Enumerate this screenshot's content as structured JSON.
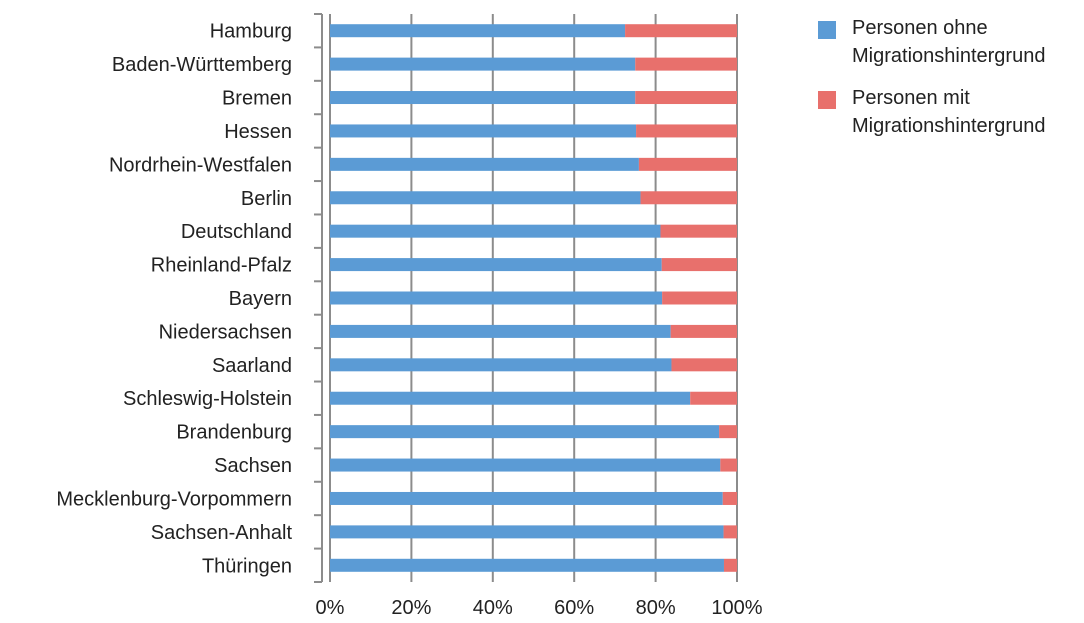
{
  "chart_data": {
    "type": "bar",
    "orientation": "horizontal",
    "stacked": true,
    "percent_stacked": true,
    "categories": [
      "Hamburg",
      "Baden-Württemberg",
      "Bremen",
      "Hessen",
      "Nordrhein-Westfalen",
      "Berlin",
      "Deutschland",
      "Rheinland-Pfalz",
      "Bayern",
      "Niedersachsen",
      "Saarland",
      "Schleswig-Holstein",
      "Brandenburg",
      "Sachsen",
      "Mecklenburg-Vorpommern",
      "Sachsen-Anhalt",
      "Thüringen"
    ],
    "series": [
      {
        "name": "Personen ohne Migrationshintergrund",
        "color": "#5b9bd5",
        "values": [
          72.5,
          75,
          75,
          75.2,
          75.9,
          76.3,
          81.2,
          81.5,
          81.6,
          83.7,
          83.9,
          88.5,
          95.6,
          95.9,
          96.5,
          96.7,
          96.8
        ]
      },
      {
        "name": "Personen mit Migrationshintergrund",
        "color": "#e8706c",
        "values": [
          27.5,
          25,
          25,
          24.8,
          24.1,
          23.7,
          18.8,
          18.5,
          18.4,
          16.3,
          16.1,
          11.5,
          4.4,
          4.1,
          3.5,
          3.3,
          3.2
        ]
      }
    ],
    "x_ticks": [
      "0%",
      "20%",
      "40%",
      "60%",
      "80%",
      "100%"
    ],
    "xlim": [
      0,
      100
    ],
    "grid": true,
    "legend_position": "right"
  }
}
